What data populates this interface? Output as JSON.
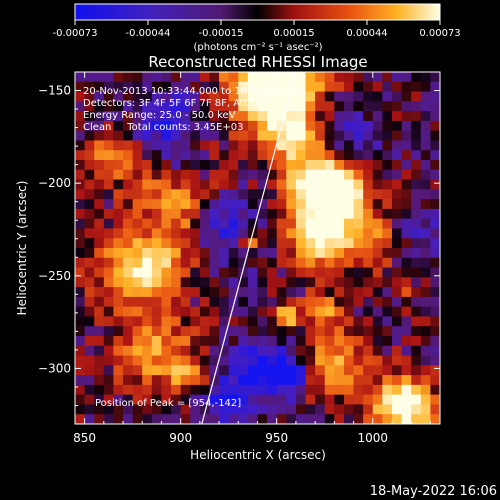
{
  "chart_data": {
    "type": "heatmap",
    "title": "Reconstructed RHESSI Image",
    "xlabel": "Heliocentric X (arcsec)",
    "ylabel": "Heliocentric Y (arcsec)",
    "xlim": [
      845,
      1035
    ],
    "ylim": [
      -330,
      -140
    ],
    "x_ticks": [
      850,
      900,
      950,
      1000
    ],
    "y_ticks": [
      -150,
      -200,
      -250,
      -300
    ],
    "colorbar": {
      "min": -0.00073,
      "max": 0.00073,
      "ticks": [
        "-0.00073",
        "-0.00044",
        "-0.00015",
        "0.00015",
        "0.00044",
        "0.00073"
      ],
      "unit_label": "(photons cm⁻² s⁻¹ asec⁻²)"
    },
    "annotations": [
      "20-Nov-2013 10:33:44.000 to 10:34:56.000",
      "Detectors: 3F 4F 5F 6F 7F 8F, Att:0",
      "Energy Range: 25.0 - 50.0 keV",
      "Clean     Total counts: 3.45E+03"
    ],
    "peak_label": "Position of Peak = [954,-142]",
    "peak": [
      954,
      -142
    ],
    "limb_line": [
      [
        911,
        -330
      ],
      [
        960,
        -140
      ]
    ]
  },
  "timestamp": "18-May-2022 16:06"
}
